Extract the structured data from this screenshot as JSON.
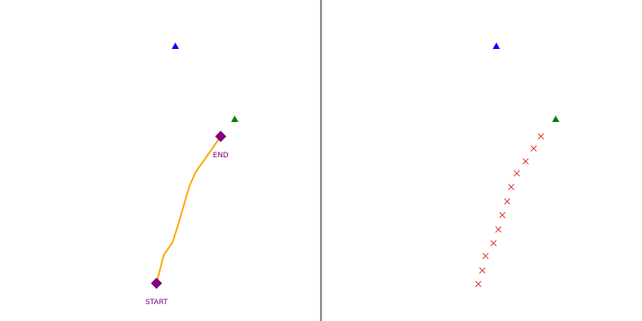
{
  "panels": {
    "left": {
      "path_color": "#ffa500",
      "endpoint_color": "#800080",
      "start_label": "START",
      "end_label": "END"
    },
    "right": {
      "cross_color": "#e84040"
    }
  },
  "divider_color": "#808080",
  "targets": [
    {
      "name": "blue-triangle",
      "color": "#0000ff"
    },
    {
      "name": "green-triangle",
      "color": "#008000"
    }
  ]
}
